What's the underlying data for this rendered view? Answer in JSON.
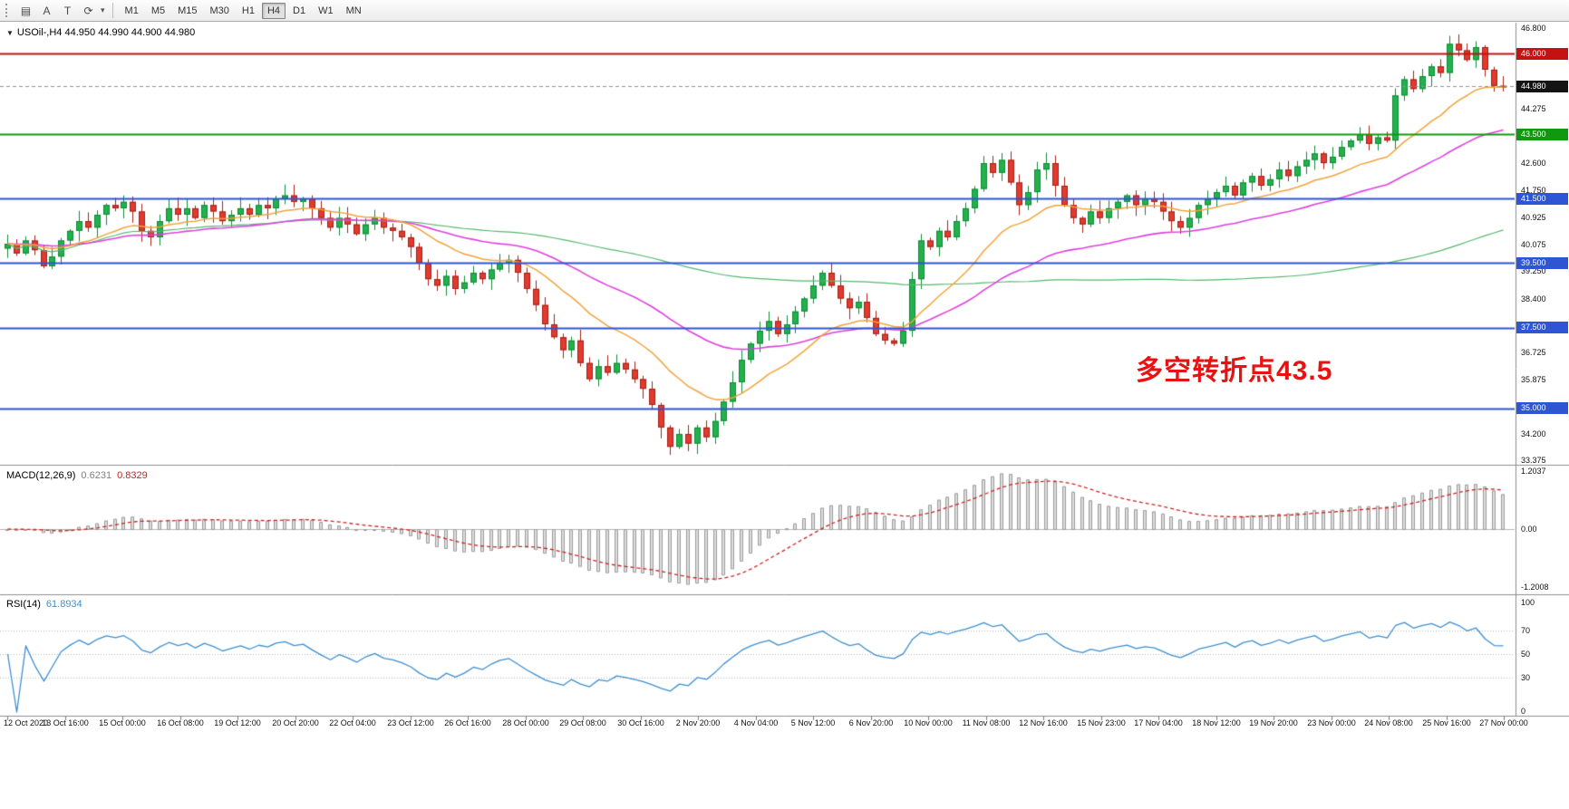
{
  "toolbar": {
    "icons": [
      {
        "name": "chart-grid-icon",
        "glyph": "▤"
      },
      {
        "name": "font-tool-icon",
        "glyph": "A"
      },
      {
        "name": "template-tool-icon",
        "glyph": "T"
      },
      {
        "name": "refresh-tool-icon",
        "glyph": "⟳"
      }
    ],
    "dropdown_caret": "▾",
    "timeframes": [
      "M1",
      "M5",
      "M15",
      "M30",
      "H1",
      "H4",
      "D1",
      "W1",
      "MN"
    ],
    "active_timeframe": "H4"
  },
  "chart_header": {
    "collapse_icon": "▼",
    "symbol": "USOil-,H4",
    "ohlc_text": "44.950 44.990 44.900 44.980"
  },
  "annotation": {
    "text": "多空转折点43.5",
    "color": "#e81212"
  },
  "indicators": {
    "macd": {
      "name": "MACD(12,26,9)",
      "value_main": "0.6231",
      "value_signal": "0.8329",
      "scale_labels": [
        "1.2037",
        "0.00",
        "-1.2008"
      ],
      "histogram_color": "#dcdcdc",
      "histogram_border": "#9b9b9b",
      "signal_color": "#cc2222"
    },
    "rsi": {
      "name": "RSI(14)",
      "value": "61.8934",
      "scale_labels": [
        "100",
        "70",
        "50",
        "30",
        "0"
      ],
      "levels": [
        70,
        50,
        30
      ],
      "line_color": "#3d8fd1"
    }
  },
  "chart_data": {
    "type": "candlestick",
    "symbol": "USOil-",
    "timeframe": "H4",
    "current_ohlc": {
      "open": 44.95,
      "high": 44.99,
      "low": 44.9,
      "close": 44.98
    },
    "y_range": {
      "min": 33.3,
      "max": 46.93
    },
    "y_ticks": [
      "46.800",
      "44.275",
      "42.600",
      "41.750",
      "40.925",
      "40.075",
      "39.250",
      "38.400",
      "36.725",
      "35.875",
      "34.200",
      "33.375"
    ],
    "x_labels": [
      "12 Oct 2020",
      "13 Oct 16:00",
      "15 Oct 00:00",
      "16 Oct 08:00",
      "19 Oct 12:00",
      "20 Oct 20:00",
      "22 Oct 04:00",
      "23 Oct 12:00",
      "26 Oct 16:00",
      "28 Oct 00:00",
      "29 Oct 08:00",
      "30 Oct 16:00",
      "2 Nov 20:00",
      "4 Nov 04:00",
      "5 Nov 12:00",
      "6 Nov 20:00",
      "10 Nov 00:00",
      "11 Nov 08:00",
      "12 Nov 16:00",
      "15 Nov 23:00",
      "17 Nov 04:00",
      "18 Nov 12:00",
      "19 Nov 20:00",
      "23 Nov 00:00",
      "24 Nov 08:00",
      "25 Nov 16:00",
      "27 Nov 00:00"
    ],
    "closes": [
      40.1,
      39.8,
      40.2,
      39.9,
      39.4,
      39.7,
      40.2,
      40.5,
      40.8,
      40.6,
      41.0,
      41.3,
      41.2,
      41.4,
      41.1,
      40.5,
      40.3,
      40.8,
      41.2,
      41.0,
      41.2,
      40.9,
      41.3,
      41.1,
      40.8,
      41.0,
      41.2,
      41.0,
      41.3,
      41.2,
      41.5,
      41.6,
      41.4,
      41.5,
      41.2,
      40.9,
      40.6,
      40.9,
      40.7,
      40.4,
      40.7,
      40.9,
      40.6,
      40.5,
      40.3,
      40.0,
      39.5,
      39.0,
      38.8,
      39.1,
      38.7,
      38.9,
      39.2,
      39.0,
      39.3,
      39.5,
      39.6,
      39.2,
      38.7,
      38.2,
      37.6,
      37.2,
      36.8,
      37.1,
      36.4,
      35.9,
      36.3,
      36.1,
      36.4,
      36.2,
      35.9,
      35.6,
      35.1,
      34.4,
      33.8,
      34.2,
      33.9,
      34.4,
      34.1,
      34.6,
      35.2,
      35.8,
      36.5,
      37.0,
      37.4,
      37.7,
      37.3,
      37.6,
      38.0,
      38.4,
      38.8,
      39.2,
      38.8,
      38.4,
      38.1,
      38.3,
      37.8,
      37.3,
      37.1,
      37.0,
      37.4,
      39.0,
      40.2,
      40.0,
      40.5,
      40.3,
      40.8,
      41.2,
      41.8,
      42.6,
      42.3,
      42.7,
      42.0,
      41.3,
      41.7,
      42.4,
      42.6,
      41.9,
      41.3,
      40.9,
      40.7,
      41.1,
      40.9,
      41.2,
      41.4,
      41.6,
      41.3,
      41.5,
      41.4,
      41.1,
      40.8,
      40.6,
      40.9,
      41.3,
      41.5,
      41.7,
      41.9,
      41.6,
      42.0,
      42.2,
      41.9,
      42.1,
      42.4,
      42.2,
      42.5,
      42.7,
      42.9,
      42.6,
      42.8,
      43.1,
      43.3,
      43.5,
      43.2,
      43.4,
      43.3,
      44.7,
      45.2,
      44.9,
      45.3,
      45.6,
      45.4,
      46.3,
      46.1,
      45.8,
      46.2,
      45.5,
      45.0,
      44.98
    ],
    "extremes": {
      "max_high": 46.55,
      "max_index": 161,
      "min_low": 33.55,
      "min_index": 74
    },
    "levels": [
      {
        "price": 46.0,
        "label": "46.000",
        "color": "#c41111",
        "style": "solid",
        "width": 2
      },
      {
        "price": 44.98,
        "label": "44.980",
        "color": "#909090",
        "badge": "#141414",
        "style": "dashed",
        "width": 1,
        "role": "last-price"
      },
      {
        "price": 43.5,
        "label": "43.500",
        "color": "#109810",
        "style": "solid",
        "width": 2
      },
      {
        "price": 41.5,
        "label": "41.500",
        "color": "#2e55d4",
        "style": "solid",
        "width": 2
      },
      {
        "price": 39.5,
        "label": "39.500",
        "color": "#2e55d4",
        "style": "solid",
        "width": 2
      },
      {
        "price": 37.5,
        "label": "37.500",
        "color": "#2e55d4",
        "style": "solid",
        "width": 2
      },
      {
        "price": 35.0,
        "label": "35.000",
        "color": "#2e55d4",
        "style": "solid",
        "width": 2
      }
    ],
    "moving_averages": [
      {
        "name": "ma-slow",
        "type": "sma",
        "period": 100,
        "color": "#53b86e",
        "width": 1.2
      },
      {
        "name": "ma-mid",
        "type": "ema",
        "period": 40,
        "color": "#df3fdf",
        "width": 1.6
      },
      {
        "name": "ma-fast",
        "type": "ema",
        "period": 16,
        "color": "#f2a33c",
        "width": 1.5
      }
    ],
    "up_color": "#22b14c",
    "up_border": "#0f8a36",
    "down_color": "#e23a2e",
    "down_border": "#a32016"
  }
}
